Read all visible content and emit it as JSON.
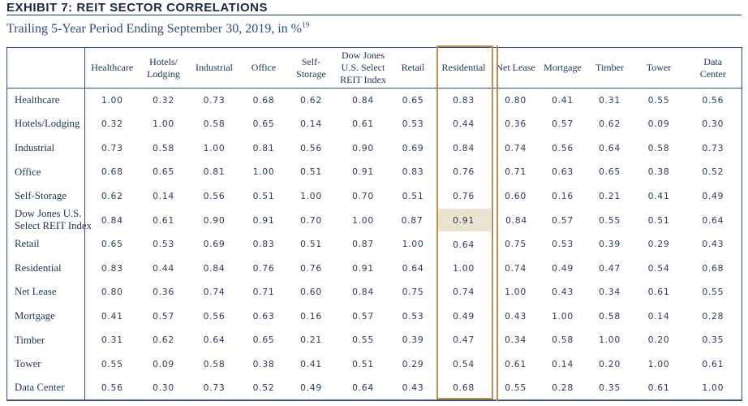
{
  "header": {
    "title": "EXHIBIT 7: REIT SECTOR CORRELATIONS",
    "subtitle": "Trailing 5-Year Period Ending September 30, 2019, in %",
    "subtitle_superscript": "19"
  },
  "colors": {
    "navy_text": "#1d3357",
    "number_text": "#2b3c5f",
    "table_border": "#41506e",
    "highlight_gold": "#b2924e",
    "highlight_cell_bg": "#eae3d0"
  },
  "table": {
    "corner_label": "",
    "columns": [
      "Healthcare",
      "Hotels/\nLodging",
      "Industrial",
      "Office",
      "Self-\nStorage",
      "Dow Jones\nU.S. Select\nREIT Index",
      "Retail",
      "Residential",
      "Net Lease",
      "Mortgage",
      "Timber",
      "Tower",
      "Data\nCenter"
    ],
    "rows": [
      {
        "label": "Healthcare",
        "values": [
          "1.00",
          "0.32",
          "0.73",
          "0.68",
          "0.62",
          "0.84",
          "0.65",
          "0.83",
          "0.80",
          "0.41",
          "0.31",
          "0.55",
          "0.56"
        ]
      },
      {
        "label": "Hotels/Lodging",
        "values": [
          "0.32",
          "1.00",
          "0.58",
          "0.65",
          "0.14",
          "0.61",
          "0.53",
          "0.44",
          "0.36",
          "0.57",
          "0.62",
          "0.09",
          "0.30"
        ]
      },
      {
        "label": "Industrial",
        "values": [
          "0.73",
          "0.58",
          "1.00",
          "0.81",
          "0.56",
          "0.90",
          "0.69",
          "0.84",
          "0.74",
          "0.56",
          "0.64",
          "0.58",
          "0.73"
        ]
      },
      {
        "label": "Office",
        "values": [
          "0.68",
          "0.65",
          "0.81",
          "1.00",
          "0.51",
          "0.91",
          "0.83",
          "0.76",
          "0.71",
          "0.63",
          "0.65",
          "0.38",
          "0.52"
        ]
      },
      {
        "label": "Self-Storage",
        "values": [
          "0.62",
          "0.14",
          "0.56",
          "0.51",
          "1.00",
          "0.70",
          "0.51",
          "0.76",
          "0.60",
          "0.16",
          "0.21",
          "0.41",
          "0.49"
        ]
      },
      {
        "label": "Dow Jones U.S.\nSelect REIT Index",
        "values": [
          "0.84",
          "0.61",
          "0.90",
          "0.91",
          "0.70",
          "1.00",
          "0.87",
          "0.91",
          "0.84",
          "0.57",
          "0.55",
          "0.51",
          "0.64"
        ]
      },
      {
        "label": "Retail",
        "values": [
          "0.65",
          "0.53",
          "0.69",
          "0.83",
          "0.51",
          "0.87",
          "1.00",
          "0.64",
          "0.75",
          "0.53",
          "0.39",
          "0.29",
          "0.43"
        ]
      },
      {
        "label": "Residential",
        "values": [
          "0.83",
          "0.44",
          "0.84",
          "0.76",
          "0.76",
          "0.91",
          "0.64",
          "1.00",
          "0.74",
          "0.49",
          "0.47",
          "0.54",
          "0.68"
        ]
      },
      {
        "label": "Net Lease",
        "values": [
          "0.80",
          "0.36",
          "0.74",
          "0.71",
          "0.60",
          "0.84",
          "0.75",
          "0.74",
          "1.00",
          "0.43",
          "0.34",
          "0.61",
          "0.55"
        ]
      },
      {
        "label": "Mortgage",
        "values": [
          "0.41",
          "0.57",
          "0.56",
          "0.63",
          "0.16",
          "0.57",
          "0.53",
          "0.49",
          "0.43",
          "1.00",
          "0.58",
          "0.14",
          "0.28"
        ]
      },
      {
        "label": "Timber",
        "values": [
          "0.31",
          "0.62",
          "0.64",
          "0.65",
          "0.21",
          "0.55",
          "0.39",
          "0.47",
          "0.34",
          "0.58",
          "1.00",
          "0.20",
          "0.35"
        ]
      },
      {
        "label": "Tower",
        "values": [
          "0.55",
          "0.09",
          "0.58",
          "0.38",
          "0.41",
          "0.51",
          "0.29",
          "0.54",
          "0.61",
          "0.14",
          "0.20",
          "1.00",
          "0.61"
        ]
      },
      {
        "label": "Data Center",
        "values": [
          "0.56",
          "0.30",
          "0.73",
          "0.52",
          "0.49",
          "0.64",
          "0.43",
          "0.68",
          "0.55",
          "0.28",
          "0.35",
          "0.61",
          "1.00"
        ]
      }
    ],
    "highlight": {
      "column": "Residential",
      "cell_row": "Dow Jones U.S.\nSelect REIT Index",
      "cell_column": "Residential"
    }
  }
}
